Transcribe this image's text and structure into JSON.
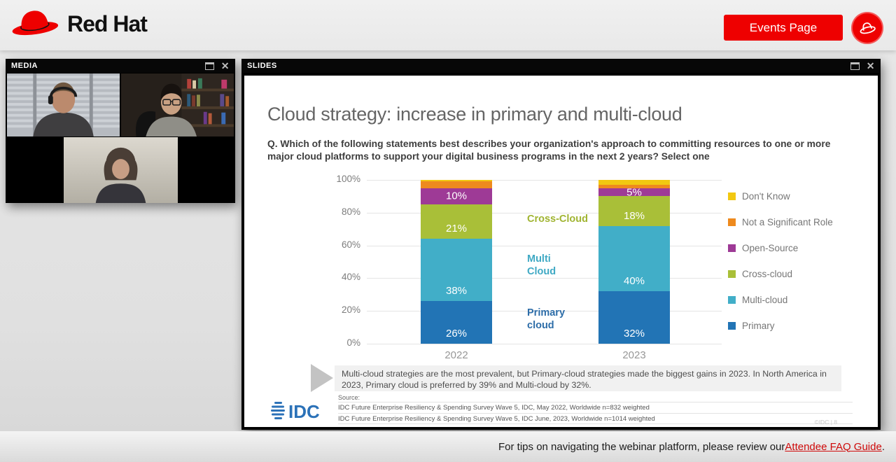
{
  "header": {
    "brand": "Red Hat",
    "events_button_label": "Events Page",
    "brand_color": "#ee0000"
  },
  "media_panel": {
    "title": "MEDIA",
    "participants": [
      "presenter-with-headset",
      "presenter-with-glasses",
      "presenter-with-curly-hair"
    ]
  },
  "slides_panel": {
    "title": "SLIDES",
    "slide": {
      "title": "Cloud strategy: increase in primary and multi-cloud",
      "question": "Q. Which of the following statements best describes your organization's approach to committing resources to one or more major cloud platforms to support your digital business programs in the next 2 years? Select one",
      "note": "Multi-cloud strategies are the most prevalent, but Primary-cloud strategies made the biggest gains in 2023.  In North America in 2023, Primary cloud is preferred by 39% and Multi-cloud by 32%.",
      "source_label": "Source:",
      "sources": [
        "IDC Future Enterprise Resiliency & Spending Survey Wave 5, IDC, May 2022, Worldwide n=832 weighted",
        "IDC Future Enterprise Resiliency & Spending Survey Wave 5, IDC June, 2023, Worldwide n=1014 weighted"
      ],
      "logo_text": "IDC",
      "page_marker": "©IDC  |  8"
    }
  },
  "chart_data": {
    "type": "bar",
    "subtype": "stacked-100-percent",
    "categories": [
      "2022",
      "2023"
    ],
    "series": [
      {
        "name": "Primary",
        "color": "#2274b5",
        "values": [
          26,
          32
        ]
      },
      {
        "name": "Multi-cloud",
        "color": "#41aec8",
        "values": [
          38,
          40
        ]
      },
      {
        "name": "Cross-cloud",
        "color": "#a9bf38",
        "values": [
          21,
          18
        ]
      },
      {
        "name": "Open-Source",
        "color": "#9e3a96",
        "values": [
          10,
          5
        ]
      },
      {
        "name": "Not a Significant Role",
        "color": "#ee8a1e",
        "values": [
          4,
          2
        ]
      },
      {
        "name": "Don't Know",
        "color": "#f2c811",
        "values": [
          1,
          3
        ]
      }
    ],
    "ylim": [
      0,
      100
    ],
    "yticks": [
      "0%",
      "20%",
      "40%",
      "60%",
      "80%",
      "100%"
    ],
    "grid": true,
    "legend_position": "right",
    "legend_order": [
      "Don't Know",
      "Not a Significant Role",
      "Open-Source",
      "Cross-cloud",
      "Multi-cloud",
      "Primary"
    ],
    "label_min_value": 5,
    "annotations": [
      {
        "text": "Cross-Cloud",
        "color": "#a0b431",
        "y_pct": 76
      },
      {
        "text": "Multi\nCloud",
        "color": "#3fa9c4",
        "y_pct": 48
      },
      {
        "text": "Primary\ncloud",
        "color": "#2d6da8",
        "y_pct": 15
      }
    ]
  },
  "footer": {
    "text": "For tips on navigating the webinar platform, please review our ",
    "link_label": "Attendee FAQ Guide",
    "suffix": "."
  }
}
